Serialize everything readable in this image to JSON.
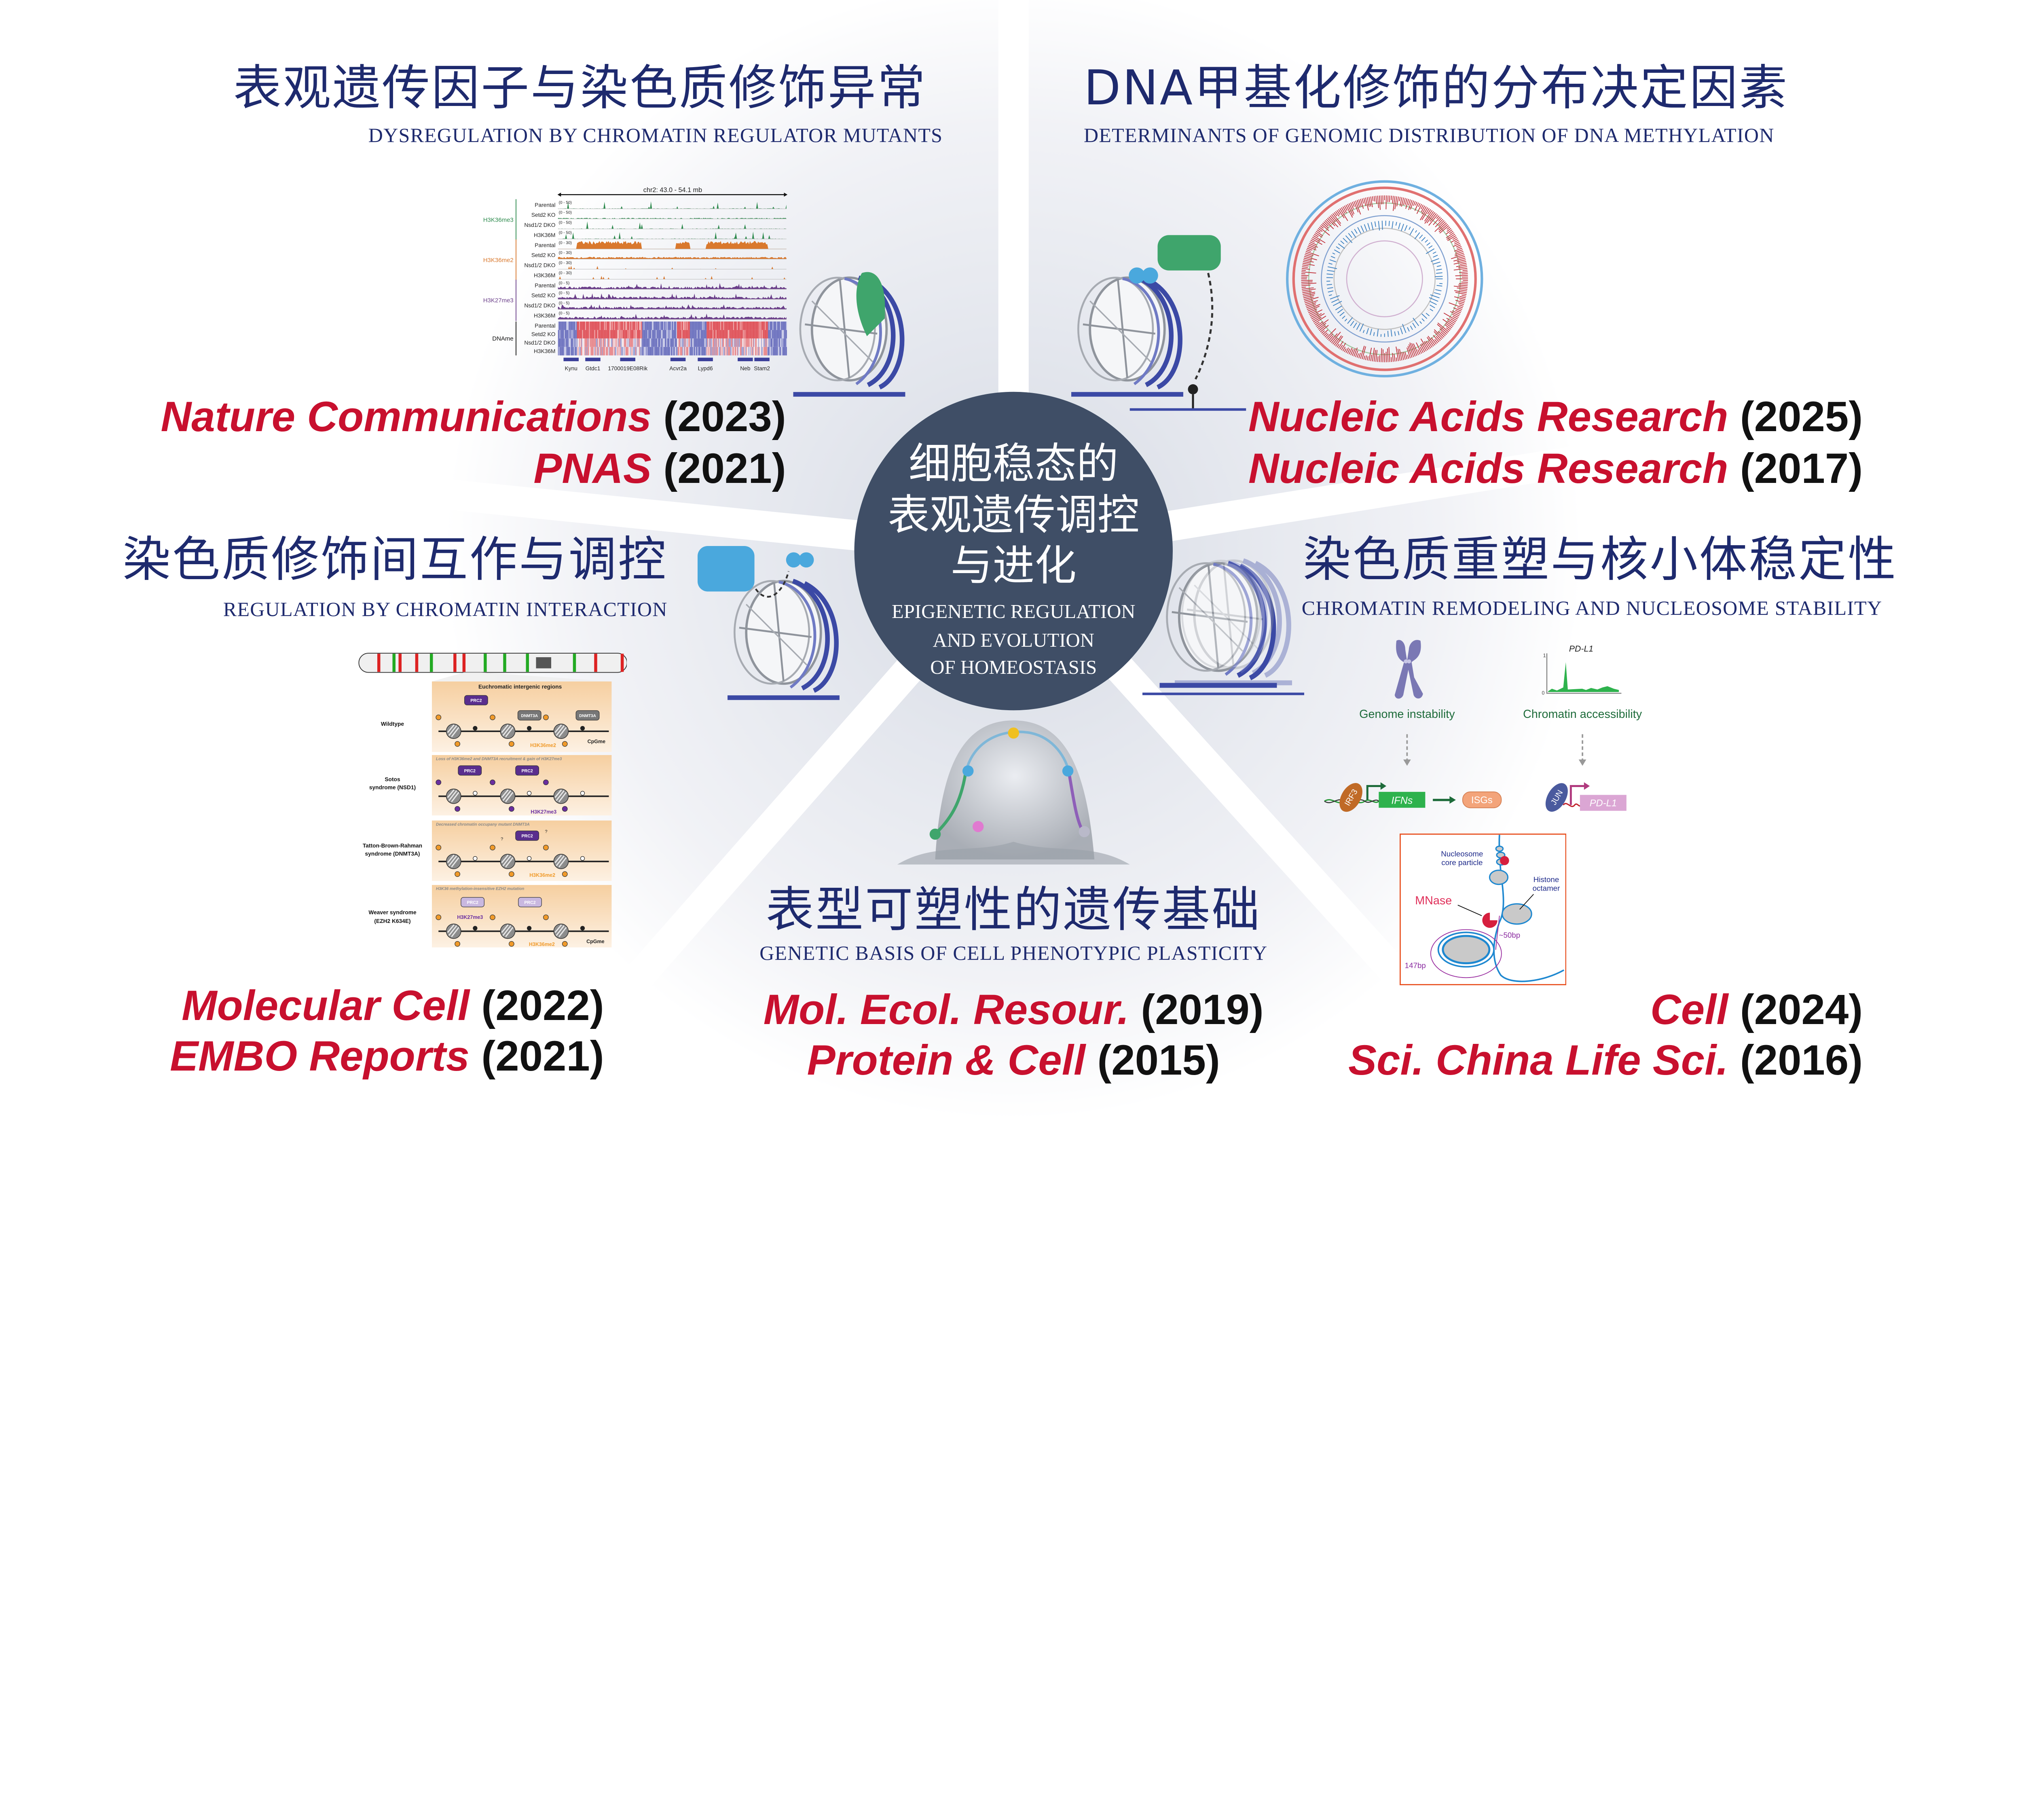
{
  "center": {
    "zh": [
      "细胞稳态的",
      "表观遗传调控",
      "与进化"
    ],
    "en": [
      "EPIGENETIC REGULATION",
      "AND EVOLUTION",
      "OF HOMEOSTASIS"
    ]
  },
  "sections": {
    "top_left": {
      "title": "表观遗传因子与染色质修饰异常",
      "subtitle": "DYSREGULATION BY CHROMATIN REGULATOR MUTANTS",
      "papers": [
        {
          "journal": "Nature Communications",
          "year": "(2023)"
        },
        {
          "journal": "PNAS",
          "year": "(2021)"
        }
      ]
    },
    "top_right": {
      "title": "DNA甲基化修饰的分布决定因素",
      "subtitle": "DETERMINANTS OF GENOMIC DISTRIBUTION OF DNA METHYLATION",
      "papers": [
        {
          "journal": "Nucleic Acids Research",
          "year": "(2025)"
        },
        {
          "journal": "Nucleic Acids Research",
          "year": "(2017)"
        }
      ]
    },
    "middle_left": {
      "title": "染色质修饰间互作与调控",
      "subtitle": "REGULATION BY CHROMATIN INTERACTION",
      "papers": [
        {
          "journal": "Molecular Cell",
          "year": "(2022)"
        },
        {
          "journal": "EMBO Reports",
          "year": "(2021)"
        }
      ]
    },
    "middle_right": {
      "title": "染色质重塑与核小体稳定性",
      "subtitle": "CHROMATIN REMODELING AND NUCLEOSOME STABILITY",
      "papers": [
        {
          "journal": "Cell",
          "year": "(2024)"
        },
        {
          "journal": "Sci. China Life Sci.",
          "year": "(2016)"
        }
      ]
    },
    "bottom": {
      "title": "表型可塑性的遗传基础",
      "subtitle": "GENETIC BASIS OF CELL PHENOTYPIC PLASTICITY",
      "papers": [
        {
          "journal": "Mol. Ecol. Resour.",
          "year": "(2019)"
        },
        {
          "journal": "Protein & Cell",
          "year": "(2015)"
        }
      ]
    }
  },
  "figures": {
    "igv": {
      "region": "chr2: 43.0 - 54.1 mb",
      "groups": [
        {
          "mark": "H3K36me3",
          "color": "#2e8b4e",
          "range": "(0 - 50)"
        },
        {
          "mark": "H3K36me2",
          "color": "#d9782d",
          "range": "(0 - 30)"
        },
        {
          "mark": "H3K27me3",
          "color": "#6b3f8a",
          "range": "(0 - 5)"
        },
        {
          "mark": "DNAme",
          "color": "#111111"
        }
      ],
      "samples": [
        "Parental",
        "Setd2 KO",
        "Nsd1/2 DKO",
        "H3K36M"
      ],
      "genes": [
        "Kynu",
        "Gtdc1",
        "1700019E08Rik",
        "Acvr2a",
        "Lypd6",
        "Neb",
        "Stam2"
      ]
    },
    "chromatin": {
      "header": "Euchromatic intergenic regions",
      "rows": [
        {
          "label": [
            "Wildtype"
          ],
          "note": ""
        },
        {
          "label": [
            "Sotos",
            "syndrome (NSD1)"
          ],
          "note": "Loss of H3K36me2 and DNMT3A recruitment & gain of H3K27me3"
        },
        {
          "label": [
            "Tatton-Brown-Rahman",
            "syndrome (DNMT3A)"
          ],
          "note": "Decreased chromatin occupany mutant DNMT3A"
        },
        {
          "label": [
            "Weaver syndrome",
            "(EZH2 K634E)"
          ],
          "note": "H3K36 methylation-insensitive EZH2 mutation"
        }
      ],
      "prc2": "PRC2",
      "dnmt3a": "DNMT3A",
      "h3k36me2": "H3K36me2",
      "h3k27me3": "H3K27me3",
      "cpgme": "CpGme",
      "question": "?"
    },
    "genome": {
      "genome_instability": "Genome instability",
      "chromatin_accessibility": "Chromatin accessibility",
      "plot_title": "PD-L1",
      "axis_max": "1",
      "axis_min": "0",
      "irf3": "IRF3",
      "ifns": "IFNs",
      "isgs": "ISGs",
      "jun": "JUN",
      "pdl1": "PD-L1"
    },
    "mnase": {
      "ncp": [
        "Nucleosome",
        "core particle"
      ],
      "octamer": [
        "Histone",
        "octamer"
      ],
      "enzyme": "MNase",
      "linker": "~50bp",
      "core": "147bp"
    }
  },
  "colors": {
    "title": "#1e2a6e",
    "journal": "#c8102e",
    "center_disc": "#3f4e66",
    "dna_blue": "#3b49a5",
    "green": "#2e8b4e",
    "orange": "#d9782d",
    "purple": "#6b3f8a",
    "mnase_red": "#e0305a",
    "frame_orange": "#e8501f"
  }
}
